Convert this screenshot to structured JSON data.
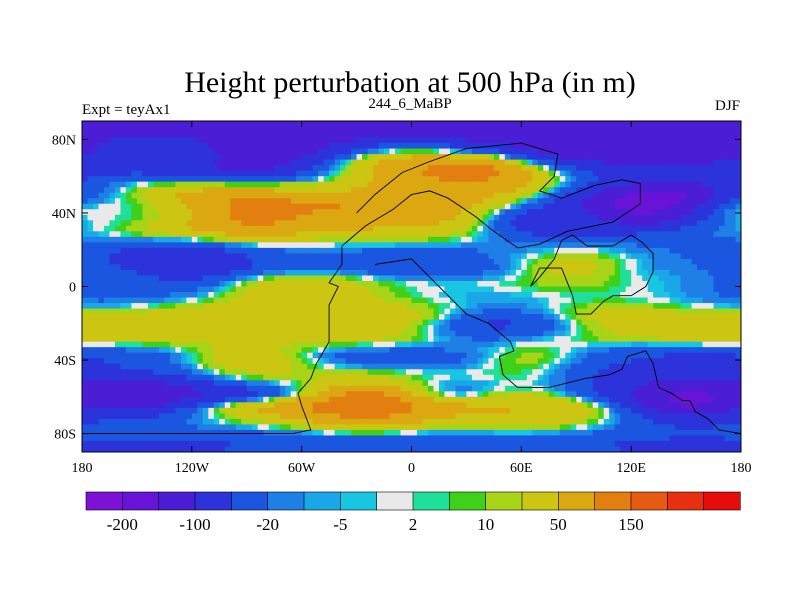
{
  "chart_data": {
    "type": "heatmap",
    "title": "Height perturbation at 500 hPa (in m)",
    "left_label": "Expt = teyAx1",
    "center_label": "244_6_MaBP",
    "right_label": "DJF",
    "xlim": [
      -180,
      180
    ],
    "ylim": [
      -90,
      90
    ],
    "x_ticks": [
      {
        "value": -180,
        "label": "180"
      },
      {
        "value": -120,
        "label": "120W"
      },
      {
        "value": -60,
        "label": "60W"
      },
      {
        "value": 0,
        "label": "0"
      },
      {
        "value": 60,
        "label": "60E"
      },
      {
        "value": 120,
        "label": "120E"
      },
      {
        "value": 180,
        "label": "180"
      }
    ],
    "y_ticks": [
      {
        "value": 80,
        "label": "80N"
      },
      {
        "value": 40,
        "label": "40N"
      },
      {
        "value": 0,
        "label": "0"
      },
      {
        "value": -40,
        "label": "40S"
      },
      {
        "value": -80,
        "label": "80S"
      }
    ],
    "colorbar": {
      "colors": [
        "#7d12d6",
        "#6a13d8",
        "#4b1ed6",
        "#2d33da",
        "#1a56e0",
        "#1e7fe6",
        "#1aa7e8",
        "#19c6e2",
        "#e9e9e9",
        "#1ee09a",
        "#3fd11a",
        "#a8d418",
        "#ccc612",
        "#dba812",
        "#e27f10",
        "#e65a12",
        "#e83010",
        "#e60c0c"
      ],
      "labels": [
        "-200",
        "-100",
        "-20",
        "-5",
        "2",
        "10",
        "50",
        "150"
      ]
    },
    "bands": [
      {
        "lat": 72,
        "value": -150
      },
      {
        "lat": 56,
        "value": 10
      },
      {
        "lat": 44,
        "value": 100
      },
      {
        "lat": 32,
        "value": 50
      },
      {
        "lat": 20,
        "value": -20
      },
      {
        "lat": 10,
        "value": -50
      },
      {
        "lat": 2,
        "value": -5
      },
      {
        "lat": -6,
        "value": 2
      },
      {
        "lat": -16,
        "value": 50
      },
      {
        "lat": -28,
        "value": 30
      },
      {
        "lat": -38,
        "value": -50
      },
      {
        "lat": -48,
        "value": -20
      },
      {
        "lat": -58,
        "value": -100
      },
      {
        "lat": -66,
        "value": 60
      },
      {
        "lat": -76,
        "value": -5
      },
      {
        "lat": -84,
        "value": -50
      }
    ],
    "anomalies": [
      {
        "lon": -100,
        "lat": 70,
        "value": -160
      },
      {
        "lon": -140,
        "lat": 72,
        "value": -50
      },
      {
        "lon": -10,
        "lat": 66,
        "value": 30
      },
      {
        "lon": 30,
        "lat": 60,
        "value": 150
      },
      {
        "lon": 25,
        "lat": 50,
        "value": 80
      },
      {
        "lon": -100,
        "lat": 40,
        "value": 140
      },
      {
        "lon": -140,
        "lat": 40,
        "value": 60
      },
      {
        "lon": 120,
        "lat": 42,
        "value": -190
      },
      {
        "lon": 150,
        "lat": 45,
        "value": -220
      },
      {
        "lon": 80,
        "lat": 35,
        "value": -90
      },
      {
        "lon": 160,
        "lat": 20,
        "value": -30
      },
      {
        "lon": -130,
        "lat": 12,
        "value": -100
      },
      {
        "lon": 90,
        "lat": 10,
        "value": 30
      },
      {
        "lon": 150,
        "lat": 0,
        "value": 2
      },
      {
        "lon": -60,
        "lat": -5,
        "value": 50
      },
      {
        "lon": 50,
        "lat": -22,
        "value": -60
      },
      {
        "lon": 70,
        "lat": -40,
        "value": 20
      },
      {
        "lon": -90,
        "lat": -40,
        "value": 40
      },
      {
        "lon": 120,
        "lat": -50,
        "value": -60
      },
      {
        "lon": -150,
        "lat": -60,
        "value": -130
      },
      {
        "lon": 150,
        "lat": -62,
        "value": -160
      },
      {
        "lon": -25,
        "lat": -63,
        "value": 140
      },
      {
        "lon": 60,
        "lat": -65,
        "value": 50
      },
      {
        "lon": -170,
        "lat": 40,
        "value": 2
      },
      {
        "lon": -170,
        "lat": 0,
        "value": -30
      }
    ],
    "land_outlines": [
      [
        [
          -30,
          40
        ],
        [
          -20,
          50
        ],
        [
          -5,
          62
        ],
        [
          10,
          68
        ],
        [
          30,
          75
        ],
        [
          60,
          78
        ],
        [
          80,
          72
        ],
        [
          78,
          60
        ],
        [
          70,
          52
        ],
        [
          82,
          48
        ],
        [
          100,
          55
        ],
        [
          115,
          58
        ],
        [
          125,
          56
        ],
        [
          125,
          45
        ],
        [
          110,
          35
        ],
        [
          85,
          30
        ],
        [
          70,
          23
        ],
        [
          58,
          21
        ],
        [
          45,
          30
        ],
        [
          35,
          38
        ],
        [
          20,
          48
        ],
        [
          10,
          52
        ],
        [
          0,
          50
        ],
        [
          -10,
          42
        ],
        [
          -25,
          33
        ],
        [
          -38,
          22
        ],
        [
          -38,
          12
        ],
        [
          -45,
          2
        ],
        [
          -40,
          0
        ],
        [
          -45,
          -10
        ],
        [
          -45,
          -30
        ],
        [
          -52,
          -42
        ],
        [
          -55,
          -50
        ],
        [
          -62,
          -58
        ],
        [
          -60,
          -65
        ],
        [
          -55,
          -78
        ],
        [
          -65,
          -80
        ],
        [
          -180,
          -80
        ]
      ],
      [
        [
          -20,
          12
        ],
        [
          0,
          15
        ],
        [
          10,
          5
        ],
        [
          20,
          -5
        ],
        [
          25,
          -10
        ],
        [
          30,
          -15
        ],
        [
          42,
          -20
        ],
        [
          48,
          -25
        ],
        [
          54,
          -30
        ],
        [
          56,
          -35
        ],
        [
          48,
          -38
        ],
        [
          50,
          -48
        ],
        [
          58,
          -55
        ],
        [
          75,
          -55
        ],
        [
          95,
          -50
        ],
        [
          108,
          -48
        ],
        [
          115,
          -45
        ],
        [
          118,
          -38
        ],
        [
          128,
          -35
        ],
        [
          132,
          -42
        ],
        [
          135,
          -55
        ],
        [
          142,
          -58
        ],
        [
          148,
          -62
        ],
        [
          152,
          -62
        ],
        [
          155,
          -68
        ],
        [
          162,
          -72
        ],
        [
          168,
          -78
        ],
        [
          180,
          -80
        ]
      ],
      [
        [
          65,
          0
        ],
        [
          70,
          10
        ],
        [
          82,
          10
        ],
        [
          88,
          -5
        ],
        [
          90,
          -15
        ],
        [
          98,
          -15
        ],
        [
          105,
          -8
        ],
        [
          110,
          -5
        ],
        [
          120,
          -5
        ],
        [
          128,
          0
        ],
        [
          132,
          8
        ],
        [
          132,
          18
        ],
        [
          126,
          24
        ],
        [
          120,
          28
        ],
        [
          110,
          22
        ],
        [
          96,
          22
        ],
        [
          88,
          28
        ],
        [
          82,
          25
        ],
        [
          78,
          15
        ],
        [
          70,
          5
        ],
        [
          65,
          0
        ]
      ]
    ]
  }
}
